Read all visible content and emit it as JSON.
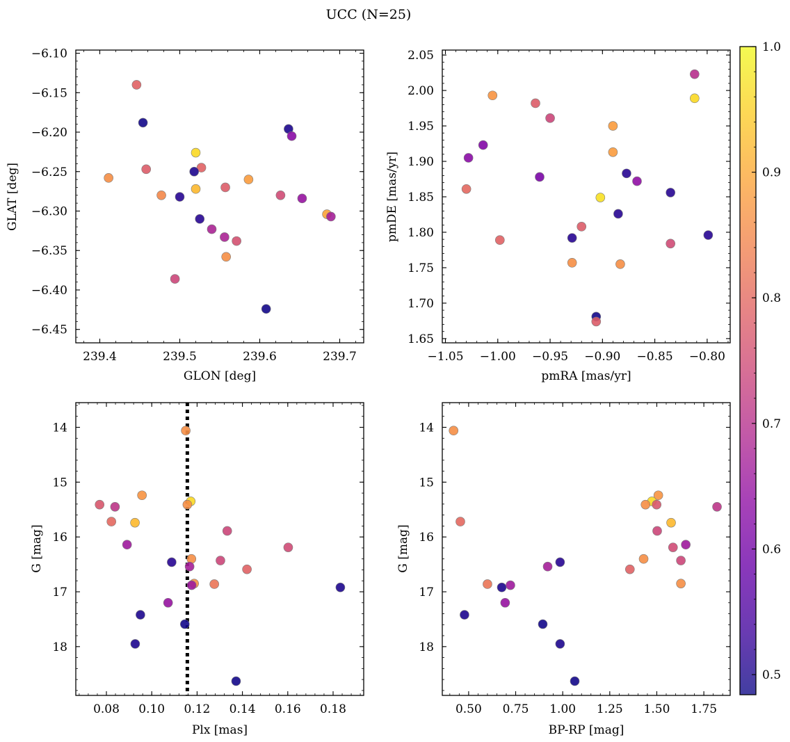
{
  "figure": {
    "title": "UCC (N=25)"
  },
  "colorbar": {
    "range": [
      0.484,
      1.0
    ],
    "ticks": [
      0.5,
      0.6,
      0.7,
      0.8,
      0.9,
      1.0
    ],
    "tick_labels": [
      "0.5",
      "0.6",
      "0.7",
      "0.8",
      "0.9",
      "1.0"
    ],
    "colormap": "plasma",
    "stops": [
      "#0d0887",
      "#41049d",
      "#6a00a8",
      "#8f0da4",
      "#b12a90",
      "#cc4778",
      "#e16462",
      "#f2844b",
      "#fca636",
      "#fcce25",
      "#f0f921"
    ],
    "alpha": 0.78
  },
  "chart_data": [
    {
      "type": "scatter",
      "id": "glon_glat",
      "xlabel": "GLON [deg]",
      "ylabel": "GLAT [deg]",
      "xlim": [
        239.37,
        239.73
      ],
      "ylim": [
        -6.467,
        -6.096
      ],
      "xticks": [
        239.4,
        239.5,
        239.6,
        239.7
      ],
      "xtick_labels": [
        "239.4",
        "239.5",
        "239.6",
        "239.7"
      ],
      "yticks": [
        -6.45,
        -6.4,
        -6.35,
        -6.3,
        -6.25,
        -6.2,
        -6.15,
        -6.1
      ],
      "ytick_labels": [
        "−6.45",
        "−6.40",
        "−6.35",
        "−6.30",
        "−6.25",
        "−6.20",
        "−6.15",
        "−6.10"
      ],
      "y_inverted": false,
      "grid": false,
      "points": [
        {
          "x": 239.446,
          "y": -6.14,
          "c": 0.79
        },
        {
          "x": 239.454,
          "y": -6.188,
          "c": 0.49
        },
        {
          "x": 239.636,
          "y": -6.196,
          "c": 0.5
        },
        {
          "x": 239.64,
          "y": -6.205,
          "c": 0.63
        },
        {
          "x": 239.52,
          "y": -6.226,
          "c": 0.96
        },
        {
          "x": 239.527,
          "y": -6.245,
          "c": 0.79
        },
        {
          "x": 239.458,
          "y": -6.247,
          "c": 0.78
        },
        {
          "x": 239.518,
          "y": -6.25,
          "c": 0.5
        },
        {
          "x": 239.411,
          "y": -6.258,
          "c": 0.86
        },
        {
          "x": 239.586,
          "y": -6.26,
          "c": 0.88
        },
        {
          "x": 239.557,
          "y": -6.27,
          "c": 0.78
        },
        {
          "x": 239.52,
          "y": -6.272,
          "c": 0.92
        },
        {
          "x": 239.477,
          "y": -6.28,
          "c": 0.85
        },
        {
          "x": 239.5,
          "y": -6.282,
          "c": 0.51
        },
        {
          "x": 239.626,
          "y": -6.28,
          "c": 0.75
        },
        {
          "x": 239.653,
          "y": -6.284,
          "c": 0.65
        },
        {
          "x": 239.684,
          "y": -6.304,
          "c": 0.89
        },
        {
          "x": 239.689,
          "y": -6.307,
          "c": 0.67
        },
        {
          "x": 239.525,
          "y": -6.31,
          "c": 0.51
        },
        {
          "x": 239.54,
          "y": -6.323,
          "c": 0.68
        },
        {
          "x": 239.556,
          "y": -6.333,
          "c": 0.68
        },
        {
          "x": 239.571,
          "y": -6.338,
          "c": 0.76
        },
        {
          "x": 239.558,
          "y": -6.358,
          "c": 0.86
        },
        {
          "x": 239.494,
          "y": -6.386,
          "c": 0.74
        },
        {
          "x": 239.608,
          "y": -6.424,
          "c": 0.49
        }
      ]
    },
    {
      "type": "scatter",
      "id": "pmra_pmde",
      "xlabel": "pmRA [mas/yr]",
      "ylabel": "pmDE [mas/yr]",
      "xlim": [
        -1.053,
        -0.778
      ],
      "ylim": [
        1.644,
        2.057
      ],
      "xticks": [
        -1.05,
        -1.0,
        -0.95,
        -0.9,
        -0.85,
        -0.8
      ],
      "xtick_labels": [
        "−1.05",
        "−1.00",
        "−0.95",
        "−0.90",
        "−0.85",
        "−0.80"
      ],
      "yticks": [
        1.65,
        1.7,
        1.75,
        1.8,
        1.85,
        1.9,
        1.95,
        2.0,
        2.05
      ],
      "ytick_labels": [
        "1.65",
        "1.70",
        "1.75",
        "1.80",
        "1.85",
        "1.90",
        "1.95",
        "2.00",
        "2.05"
      ],
      "y_inverted": false,
      "grid": false,
      "points": [
        {
          "x": -0.812,
          "y": 2.023,
          "c": 0.7
        },
        {
          "x": -1.005,
          "y": 1.993,
          "c": 0.87
        },
        {
          "x": -0.812,
          "y": 1.989,
          "c": 0.96
        },
        {
          "x": -0.964,
          "y": 1.982,
          "c": 0.78
        },
        {
          "x": -0.95,
          "y": 1.961,
          "c": 0.74
        },
        {
          "x": -0.89,
          "y": 1.95,
          "c": 0.88
        },
        {
          "x": -1.014,
          "y": 1.923,
          "c": 0.62
        },
        {
          "x": -0.89,
          "y": 1.913,
          "c": 0.88
        },
        {
          "x": -1.028,
          "y": 1.905,
          "c": 0.63
        },
        {
          "x": -0.877,
          "y": 1.883,
          "c": 0.51
        },
        {
          "x": -0.96,
          "y": 1.878,
          "c": 0.61
        },
        {
          "x": -0.867,
          "y": 1.872,
          "c": 0.64
        },
        {
          "x": -1.03,
          "y": 1.861,
          "c": 0.8
        },
        {
          "x": -0.835,
          "y": 1.856,
          "c": 0.51
        },
        {
          "x": -0.902,
          "y": 1.849,
          "c": 0.97
        },
        {
          "x": -0.885,
          "y": 1.826,
          "c": 0.51
        },
        {
          "x": -0.92,
          "y": 1.808,
          "c": 0.78
        },
        {
          "x": -0.799,
          "y": 1.796,
          "c": 0.51
        },
        {
          "x": -0.929,
          "y": 1.792,
          "c": 0.51
        },
        {
          "x": -0.998,
          "y": 1.789,
          "c": 0.79
        },
        {
          "x": -0.835,
          "y": 1.784,
          "c": 0.75
        },
        {
          "x": -0.929,
          "y": 1.757,
          "c": 0.86
        },
        {
          "x": -0.883,
          "y": 1.755,
          "c": 0.86
        },
        {
          "x": -0.906,
          "y": 1.681,
          "c": 0.49
        },
        {
          "x": -0.906,
          "y": 1.674,
          "c": 0.78
        }
      ]
    },
    {
      "type": "scatter",
      "id": "plx_g",
      "xlabel": "Plx [mas]",
      "ylabel": "G [mag]",
      "xlim": [
        0.0665,
        0.1935
      ],
      "ylim": [
        18.89,
        13.55
      ],
      "xticks": [
        0.08,
        0.1,
        0.12,
        0.14,
        0.16,
        0.18
      ],
      "xtick_labels": [
        "0.08",
        "0.10",
        "0.12",
        "0.14",
        "0.16",
        "0.18"
      ],
      "yticks": [
        14,
        15,
        16,
        17,
        18
      ],
      "ytick_labels": [
        "14",
        "15",
        "16",
        "17",
        "18"
      ],
      "y_inverted": true,
      "grid": false,
      "vline": {
        "x": 0.1157,
        "style": "dotted",
        "color": "#000000"
      },
      "points": [
        {
          "x": 0.115,
          "y": 14.06,
          "c": 0.86
        },
        {
          "x": 0.0957,
          "y": 15.24,
          "c": 0.87
        },
        {
          "x": 0.1172,
          "y": 15.35,
          "c": 0.96
        },
        {
          "x": 0.077,
          "y": 15.41,
          "c": 0.77
        },
        {
          "x": 0.1157,
          "y": 15.41,
          "c": 0.86
        },
        {
          "x": 0.0838,
          "y": 15.45,
          "c": 0.71
        },
        {
          "x": 0.0822,
          "y": 15.72,
          "c": 0.8
        },
        {
          "x": 0.0926,
          "y": 15.74,
          "c": 0.92
        },
        {
          "x": 0.1333,
          "y": 15.89,
          "c": 0.74
        },
        {
          "x": 0.0891,
          "y": 16.14,
          "c": 0.66
        },
        {
          "x": 0.1602,
          "y": 16.19,
          "c": 0.75
        },
        {
          "x": 0.1175,
          "y": 16.4,
          "c": 0.86
        },
        {
          "x": 0.1303,
          "y": 16.43,
          "c": 0.74
        },
        {
          "x": 0.1088,
          "y": 16.46,
          "c": 0.51
        },
        {
          "x": 0.1167,
          "y": 16.54,
          "c": 0.67
        },
        {
          "x": 0.142,
          "y": 16.59,
          "c": 0.79
        },
        {
          "x": 0.1187,
          "y": 16.85,
          "c": 0.86
        },
        {
          "x": 0.1276,
          "y": 16.86,
          "c": 0.82
        },
        {
          "x": 0.1176,
          "y": 16.88,
          "c": 0.66
        },
        {
          "x": 0.1832,
          "y": 16.92,
          "c": 0.5
        },
        {
          "x": 0.1072,
          "y": 17.2,
          "c": 0.65
        },
        {
          "x": 0.095,
          "y": 17.42,
          "c": 0.5
        },
        {
          "x": 0.1146,
          "y": 17.59,
          "c": 0.49
        },
        {
          "x": 0.0927,
          "y": 17.95,
          "c": 0.5
        },
        {
          "x": 0.1372,
          "y": 18.63,
          "c": 0.49
        }
      ]
    },
    {
      "type": "scatter",
      "id": "bprp_g",
      "xlabel": "BP-RP [mag]",
      "ylabel": "G [mag]",
      "xlim": [
        0.36,
        1.89
      ],
      "ylim": [
        18.89,
        13.55
      ],
      "xticks": [
        0.5,
        0.75,
        1.0,
        1.25,
        1.5,
        1.75
      ],
      "xtick_labels": [
        "0.50",
        "0.75",
        "1.00",
        "1.25",
        "1.50",
        "1.75"
      ],
      "yticks": [
        14,
        15,
        16,
        17,
        18
      ],
      "ytick_labels": [
        "14",
        "15",
        "16",
        "17",
        "18"
      ],
      "y_inverted": true,
      "grid": false,
      "points": [
        {
          "x": 0.42,
          "y": 14.06,
          "c": 0.86
        },
        {
          "x": 1.508,
          "y": 15.24,
          "c": 0.87
        },
        {
          "x": 1.474,
          "y": 15.35,
          "c": 0.96
        },
        {
          "x": 1.44,
          "y": 15.41,
          "c": 0.86
        },
        {
          "x": 1.499,
          "y": 15.41,
          "c": 0.77
        },
        {
          "x": 1.82,
          "y": 15.45,
          "c": 0.71
        },
        {
          "x": 0.456,
          "y": 15.72,
          "c": 0.8
        },
        {
          "x": 1.576,
          "y": 15.74,
          "c": 0.92
        },
        {
          "x": 1.502,
          "y": 15.89,
          "c": 0.74
        },
        {
          "x": 1.654,
          "y": 16.14,
          "c": 0.66
        },
        {
          "x": 1.586,
          "y": 16.19,
          "c": 0.75
        },
        {
          "x": 1.43,
          "y": 16.4,
          "c": 0.86
        },
        {
          "x": 1.628,
          "y": 16.43,
          "c": 0.74
        },
        {
          "x": 0.986,
          "y": 16.46,
          "c": 0.51
        },
        {
          "x": 0.92,
          "y": 16.54,
          "c": 0.67
        },
        {
          "x": 1.357,
          "y": 16.59,
          "c": 0.79
        },
        {
          "x": 1.628,
          "y": 16.85,
          "c": 0.86
        },
        {
          "x": 0.6,
          "y": 16.86,
          "c": 0.82
        },
        {
          "x": 0.722,
          "y": 16.88,
          "c": 0.66
        },
        {
          "x": 0.676,
          "y": 16.92,
          "c": 0.5
        },
        {
          "x": 0.694,
          "y": 17.2,
          "c": 0.65
        },
        {
          "x": 0.478,
          "y": 17.42,
          "c": 0.5
        },
        {
          "x": 0.894,
          "y": 17.59,
          "c": 0.49
        },
        {
          "x": 0.986,
          "y": 17.95,
          "c": 0.5
        },
        {
          "x": 1.064,
          "y": 18.63,
          "c": 0.49
        }
      ]
    }
  ]
}
